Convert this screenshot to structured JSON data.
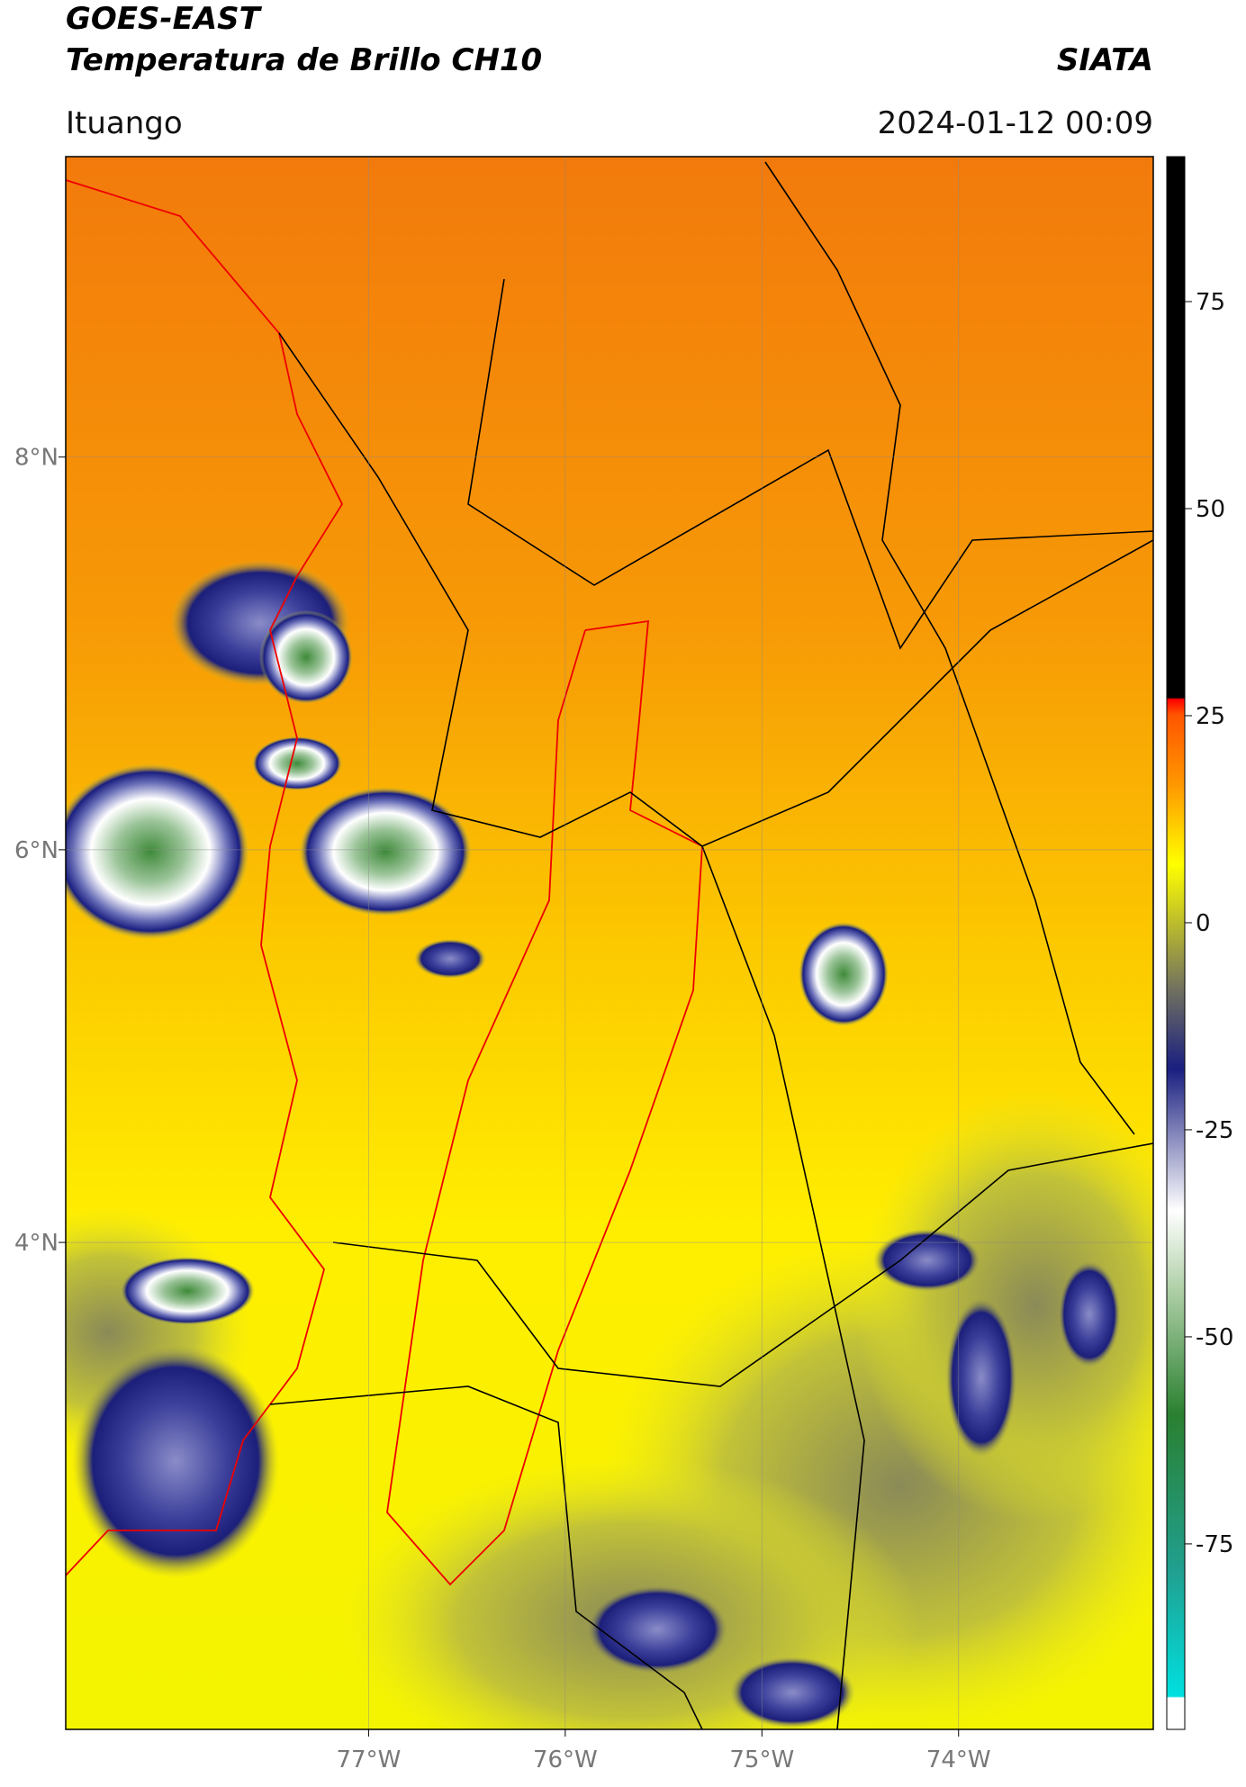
{
  "header": {
    "title": "GOES-EAST",
    "subtitle": "Temperatura de Brillo CH10",
    "source": "SIATA",
    "region": "Ituango",
    "timestamp": "2024-01-12 00:09"
  },
  "map": {
    "xlim": [
      -78.54,
      -73.01
    ],
    "ylim": [
      1.52,
      9.53
    ],
    "xticks": [
      {
        "value": -77,
        "label": "77°W"
      },
      {
        "value": -76,
        "label": "76°W"
      },
      {
        "value": -75,
        "label": "75°W"
      },
      {
        "value": -74,
        "label": "74°W"
      }
    ],
    "yticks": [
      {
        "value": 4,
        "label": "4°N"
      },
      {
        "value": 6,
        "label": "6°N"
      },
      {
        "value": 8,
        "label": "8°N"
      }
    ],
    "grid": true
  },
  "colorbar": {
    "lim": [
      -97.4,
      92.5
    ],
    "ticks": [
      -75,
      -50,
      -25,
      0,
      25,
      50,
      75
    ]
  }
}
